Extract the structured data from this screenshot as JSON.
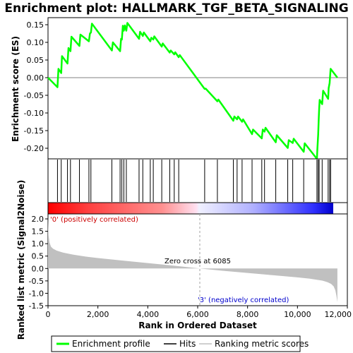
{
  "chart_data": {
    "type": "line",
    "title": "Enrichment plot: HALLMARK_TGF_BETA_SIGNALING",
    "xlabel": "Rank in Ordered Dataset",
    "ylabel_top": "Enrichment score (ES)",
    "ylabel_bottom": "Ranked list metric (Signal2Noise)",
    "xlim": [
      0,
      12000
    ],
    "x_ticks": [
      0,
      2000,
      4000,
      6000,
      8000,
      10000,
      12000
    ],
    "x_tick_labels": [
      "0",
      "2,000",
      "4,000",
      "6,000",
      "8,000",
      "10,000",
      "12,000"
    ],
    "es_ylim": [
      -0.23,
      0.17
    ],
    "es_ticks": [
      0.15,
      0.1,
      0.05,
      0.0,
      -0.05,
      -0.1,
      -0.15,
      -0.2
    ],
    "es_tick_labels": [
      "0.15",
      "0.10",
      "0.05",
      "0.00",
      "-0.05",
      "-0.10",
      "-0.15",
      "-0.20"
    ],
    "metric_ylim": [
      -1.5,
      2.2
    ],
    "metric_ticks": [
      2.0,
      1.5,
      1.0,
      0.5,
      0.0,
      -0.5,
      -1.0,
      -1.5
    ],
    "metric_tick_labels": [
      "2.0",
      "1.5",
      "1.0",
      "0.5",
      "0.0",
      "-0.5",
      "-1.0",
      "-1.5"
    ],
    "series": [
      {
        "name": "Enrichment profile",
        "color": "#00ff00",
        "x": [
          0,
          380,
          420,
          530,
          560,
          780,
          820,
          900,
          940,
          1260,
          1300,
          1640,
          1680,
          1720,
          1760,
          2560,
          2600,
          2890,
          2930,
          2960,
          3000,
          3040,
          3080,
          3140,
          3180,
          3650,
          3690,
          3800,
          3840,
          4100,
          4140,
          4220,
          4260,
          4560,
          4600,
          4880,
          4920,
          5060,
          5100,
          5240,
          5280,
          6280,
          6320,
          6790,
          6830,
          7430,
          7470,
          7580,
          7620,
          7780,
          7820,
          8180,
          8220,
          8570,
          8610,
          8680,
          8720,
          9130,
          9170,
          9610,
          9650,
          9810,
          9850,
          10250,
          10290,
          10780,
          10800,
          10830,
          10850,
          10870,
          10890,
          10990,
          11030,
          11230,
          11250,
          11290,
          11330,
          11600
        ],
        "y": [
          0.0,
          -0.027,
          0.025,
          0.013,
          0.061,
          0.04,
          0.084,
          0.075,
          0.116,
          0.09,
          0.122,
          0.103,
          0.125,
          0.128,
          0.153,
          0.077,
          0.1,
          0.075,
          0.11,
          0.108,
          0.147,
          0.133,
          0.148,
          0.133,
          0.155,
          0.11,
          0.13,
          0.118,
          0.128,
          0.103,
          0.113,
          0.108,
          0.117,
          0.088,
          0.097,
          0.071,
          0.077,
          0.066,
          0.072,
          0.058,
          0.064,
          -0.032,
          -0.031,
          -0.067,
          -0.062,
          -0.122,
          -0.11,
          -0.118,
          -0.11,
          -0.125,
          -0.118,
          -0.16,
          -0.147,
          -0.172,
          -0.147,
          -0.153,
          -0.142,
          -0.183,
          -0.163,
          -0.199,
          -0.177,
          -0.185,
          -0.173,
          -0.21,
          -0.186,
          -0.23,
          -0.2,
          -0.16,
          -0.12,
          -0.087,
          -0.063,
          -0.075,
          -0.037,
          -0.06,
          -0.03,
          -0.015,
          0.025,
          0.0
        ]
      }
    ],
    "hits": [
      380,
      530,
      780,
      900,
      1260,
      1640,
      1720,
      2560,
      2890,
      2960,
      3040,
      3140,
      3650,
      3800,
      4100,
      4220,
      4560,
      4880,
      5060,
      5240,
      6280,
      6790,
      7430,
      7580,
      7780,
      8180,
      8570,
      8680,
      9130,
      9610,
      9810,
      10250,
      10780,
      10830,
      10870,
      10990,
      11230,
      11290,
      11330
    ],
    "metric_curve": {
      "x": [
        0,
        20,
        60,
        120,
        200,
        350,
        600,
        1000,
        1500,
        2000,
        3000,
        4000,
        5000,
        6085,
        7000,
        8000,
        9000,
        10000,
        10500,
        11000,
        11200,
        11350,
        11450,
        11520,
        11560,
        11600
      ],
      "y": [
        2.1,
        1.35,
        1.05,
        0.88,
        0.8,
        0.72,
        0.64,
        0.56,
        0.48,
        0.42,
        0.32,
        0.22,
        0.12,
        0.0,
        -0.09,
        -0.18,
        -0.27,
        -0.36,
        -0.41,
        -0.49,
        -0.55,
        -0.62,
        -0.72,
        -0.88,
        -1.1,
        -1.35
      ]
    },
    "zero_cross_label": "Zero cross at 6085",
    "zero_cross_x": 6085,
    "pos_label": "'0' (positively correlated)",
    "neg_label": "'3' (negatively correlated)",
    "pos_color": "#cc0000",
    "neg_color": "#0000cc",
    "legend": {
      "items": [
        {
          "label": "Enrichment profile",
          "color": "#00ff00"
        },
        {
          "label": "Hits",
          "color": "#000000"
        },
        {
          "label": "Ranking metric scores",
          "color": "#c0c0c0"
        }
      ]
    }
  }
}
